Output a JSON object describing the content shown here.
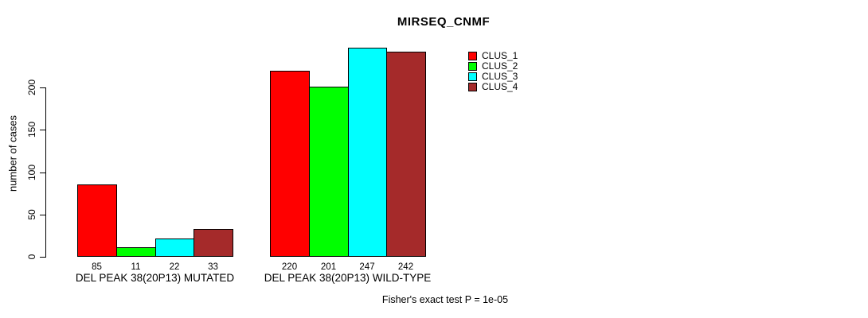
{
  "chart_data": {
    "type": "bar",
    "title": "MIRSEQ_CNMF",
    "ylabel": "number of cases",
    "xlabel": "",
    "categories": [
      "DEL PEAK 38(20P13) MUTATED",
      "DEL PEAK 38(20P13) WILD-TYPE"
    ],
    "series": [
      {
        "name": "CLUS_1",
        "color": "#FF0000",
        "values": [
          85,
          220
        ]
      },
      {
        "name": "CLUS_2",
        "color": "#00FF00",
        "values": [
          11,
          201
        ]
      },
      {
        "name": "CLUS_3",
        "color": "#00FFFF",
        "values": [
          22,
          247
        ]
      },
      {
        "name": "CLUS_4",
        "color": "#A52A2A",
        "values": [
          33,
          242
        ]
      }
    ],
    "yticks": [
      0,
      50,
      100,
      150,
      200
    ],
    "ylim": [
      0,
      247
    ],
    "grid": false,
    "legend_position": "top-right",
    "bar_value_labels": true,
    "annotation": "Fisher's exact test P = 1e-05"
  },
  "colors": {
    "background": "#FFFFFF",
    "axis": "#000000",
    "text": "#000000"
  }
}
